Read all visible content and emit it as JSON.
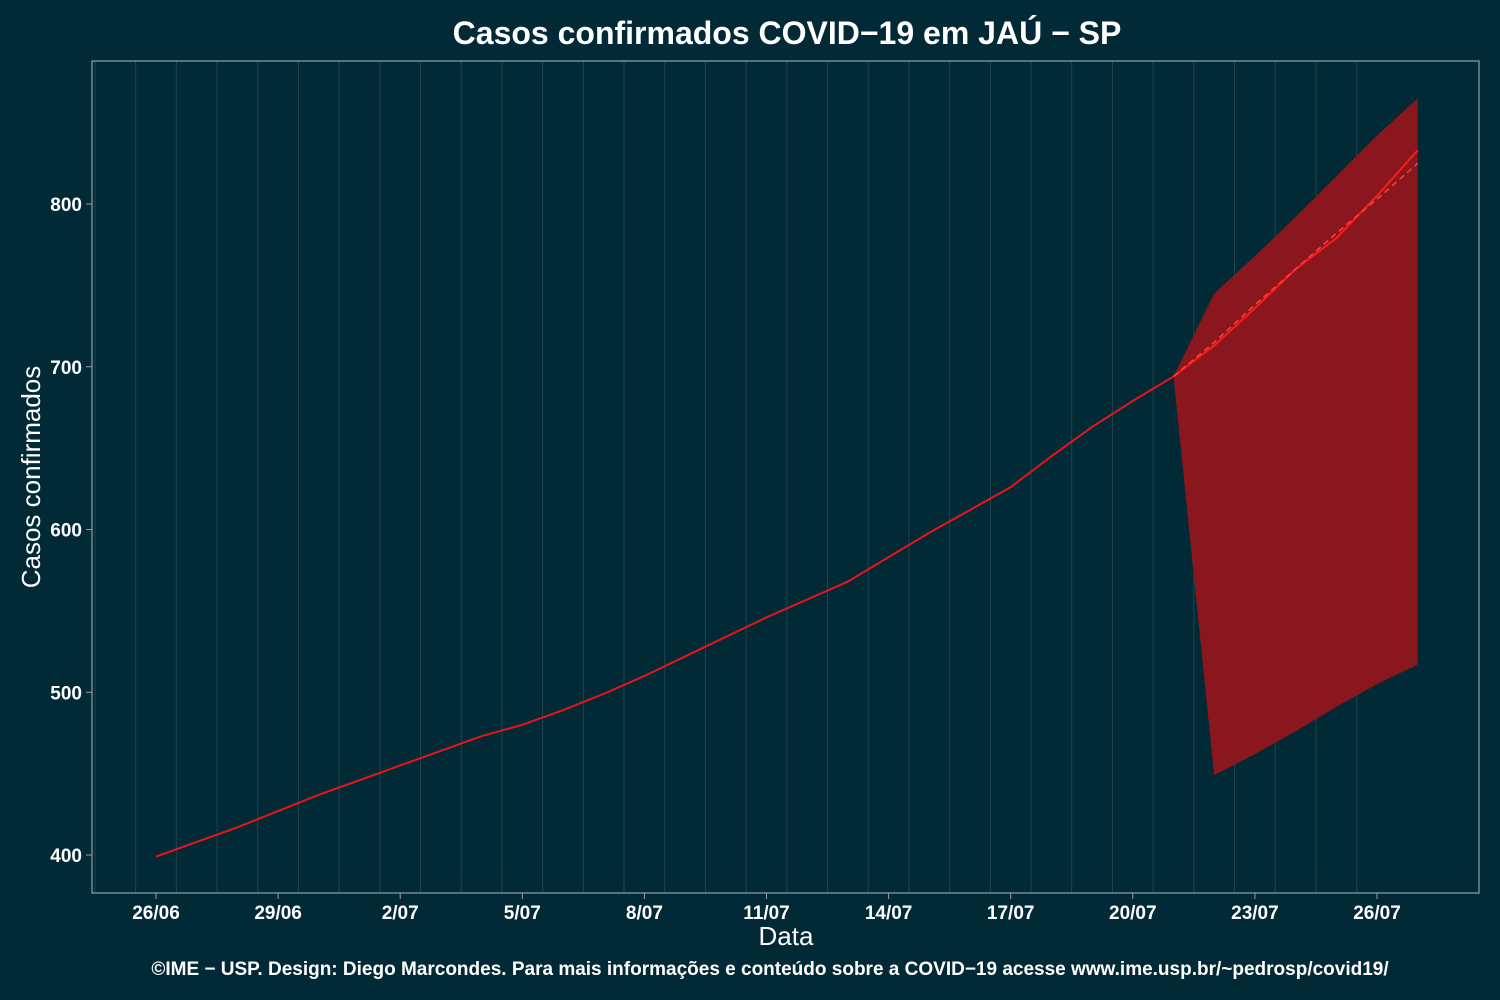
{
  "chart_data": {
    "type": "line",
    "title": "Casos confirmados COVID−19 em JAÚ − SP",
    "xlabel": "Data",
    "ylabel": "Casos confirmados",
    "credit": "©IME − USP. Design: Diego Marcondes. Para mais informações e conteúdo sobre a COVID−19 acesse www.ime.usp.br/~pedrosp/covid19/",
    "x_ticks": [
      "26/06",
      "29/06",
      "2/07",
      "5/07",
      "8/07",
      "11/07",
      "14/07",
      "17/07",
      "20/07",
      "23/07",
      "26/07"
    ],
    "y_ticks": [
      400,
      500,
      600,
      700,
      800
    ],
    "ylim": [
      380,
      885
    ],
    "grid": true,
    "colors": {
      "background": "#022a36",
      "line": "#e8141a",
      "band": "#8a171d",
      "grid": "#1d4450",
      "frame": "#8fa3a6"
    },
    "series": [
      {
        "type": "observed",
        "x": [
          "26/06",
          "27/06",
          "28/06",
          "29/06",
          "30/06",
          "1/07",
          "2/07",
          "3/07",
          "4/07",
          "5/07",
          "6/07",
          "7/07",
          "8/07",
          "9/07",
          "10/07",
          "11/07",
          "12/07",
          "13/07",
          "14/07",
          "15/07",
          "16/07",
          "17/07",
          "18/07",
          "19/07",
          "20/07",
          "21/07"
        ],
        "values": [
          399,
          408,
          417,
          427,
          437,
          446,
          455,
          464,
          473,
          480,
          489,
          499,
          510,
          522,
          534,
          546,
          557,
          568,
          583,
          598,
          612,
          626,
          645,
          663,
          679,
          694
        ]
      },
      {
        "type": "forecast",
        "x": [
          "21/07",
          "22/07",
          "23/07",
          "24/07",
          "25/07",
          "26/07",
          "27/07"
        ],
        "values": [
          694,
          713,
          736,
          760,
          779,
          805,
          833
        ]
      },
      {
        "type": "forecast-dashed",
        "x": [
          "21/07",
          "22/07",
          "23/07",
          "24/07",
          "25/07",
          "26/07",
          "27/07"
        ],
        "values": [
          694,
          715,
          738,
          760,
          782,
          803,
          825
        ]
      }
    ],
    "band": {
      "x": [
        "21/07",
        "22/07",
        "23/07",
        "24/07",
        "25/07",
        "26/07",
        "27/07"
      ],
      "lower": [
        694,
        449,
        462,
        476,
        491,
        505,
        517
      ],
      "upper": [
        694,
        745,
        768,
        792,
        817,
        842,
        865
      ]
    }
  }
}
